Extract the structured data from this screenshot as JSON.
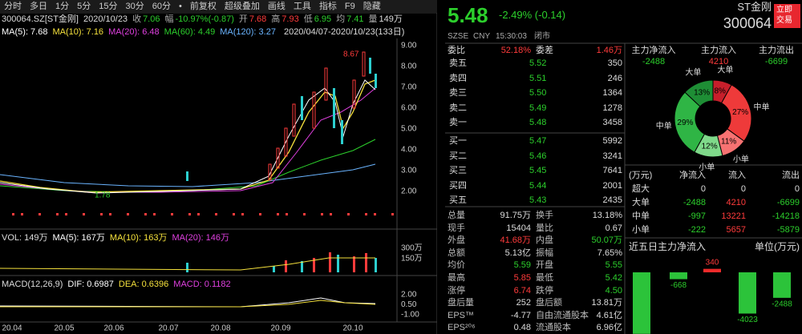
{
  "toolbar": [
    "分时",
    "多日",
    "1分",
    "5分",
    "15分",
    "30分",
    "60分",
    "•",
    "前复权",
    "超级叠加",
    "画线",
    "工具",
    "指标",
    "F9",
    "隐藏"
  ],
  "quote_header": {
    "code": "300064.SZ[ST金刚]",
    "date": "2020/10/23",
    "items": [
      {
        "label": "收",
        "value": "7.06",
        "color": "#2ccf2c"
      },
      {
        "label": "幅",
        "value": "-10.97%(-0.87)",
        "color": "#2ccf2c"
      },
      {
        "label": "开",
        "value": "7.68",
        "color": "#ff3b3b"
      },
      {
        "label": "高",
        "value": "7.93",
        "color": "#ff3b3b"
      },
      {
        "label": "低",
        "value": "6.95",
        "color": "#2ccf2c"
      },
      {
        "label": "均",
        "value": "7.41",
        "color": "#2ccf2c"
      },
      {
        "label": "量",
        "value": "149万",
        "color": "#dddddd"
      }
    ]
  },
  "ma_legend": [
    {
      "text": "MA(5): 7.68",
      "color": "#ffffff"
    },
    {
      "text": "MA(10): 7.16",
      "color": "#f5e13c"
    },
    {
      "text": "MA(20): 6.48",
      "color": "#e040e0"
    },
    {
      "text": "MA(60): 4.49",
      "color": "#2ccf2c"
    },
    {
      "text": "MA(120): 3.27",
      "color": "#6ab4ff"
    }
  ],
  "range": "2020/04/07-2020/10/23(133日)",
  "price_axis": [
    "9.00",
    "8.00",
    "7.00",
    "6.00",
    "5.00",
    "4.00",
    "3.00",
    "2.00"
  ],
  "price_high": "8.67",
  "price_low": "1.78",
  "volume": {
    "legend": [
      {
        "text": "VOL: 149万",
        "color": "#dddddd"
      },
      {
        "text": "MA(5): 167万",
        "color": "#ffffff"
      },
      {
        "text": "MA(10): 163万",
        "color": "#f5e13c"
      },
      {
        "text": "MA(20): 146万",
        "color": "#e040e0"
      }
    ],
    "axis": [
      "300万",
      "150万"
    ]
  },
  "macd": {
    "legend": [
      {
        "text": "MACD(12,26,9)",
        "color": "#dddddd"
      },
      {
        "text": "DIF: 0.6987",
        "color": "#ffffff"
      },
      {
        "text": "DEA: 0.6396",
        "color": "#f5e13c"
      },
      {
        "text": "MACD: 0.1182",
        "color": "#e040e0"
      }
    ],
    "axis": [
      "2.00",
      "0.50",
      "-1.00"
    ]
  },
  "x_axis": [
    "20.04",
    "20.05",
    "20.06",
    "20.07",
    "20.08",
    "20.09",
    "20.10"
  ],
  "quote": {
    "price": "5.48",
    "change": "-2.49% (-0.14)",
    "name": "ST金刚",
    "code": "300064",
    "trade_button": [
      "立即",
      "交易"
    ],
    "exchange": "SZSE",
    "currency": "CNY",
    "time": "15:30:03",
    "status": "闭市"
  },
  "order_book": {
    "ratio_label": "委比",
    "ratio": "52.18%",
    "diff_label": "委差",
    "diff": "1.46万",
    "asks": [
      [
        "卖五",
        "5.52",
        "350"
      ],
      [
        "卖四",
        "5.51",
        "246"
      ],
      [
        "卖三",
        "5.50",
        "1364"
      ],
      [
        "卖二",
        "5.49",
        "1278"
      ],
      [
        "卖一",
        "5.48",
        "3458"
      ]
    ],
    "bids": [
      [
        "买一",
        "5.47",
        "5992"
      ],
      [
        "买二",
        "5.46",
        "3241"
      ],
      [
        "买三",
        "5.45",
        "7641"
      ],
      [
        "买四",
        "5.44",
        "2001"
      ],
      [
        "买五",
        "5.43",
        "2435"
      ]
    ]
  },
  "stats": [
    {
      "label": "总量",
      "value": "91.75万",
      "color": "#dddddd"
    },
    {
      "label": "换手",
      "value": "13.18%",
      "color": "#dddddd"
    },
    {
      "label": "现手",
      "value": "15404",
      "color": "#dddddd"
    },
    {
      "label": "量比",
      "value": "0.67",
      "color": "#dddddd"
    },
    {
      "label": "外盘",
      "value": "41.68万",
      "color": "#ff3b3b"
    },
    {
      "label": "内盘",
      "value": "50.07万",
      "color": "#2ccf2c"
    },
    {
      "label": "总额",
      "value": "5.13亿",
      "color": "#dddddd"
    },
    {
      "label": "振幅",
      "value": "7.65%",
      "color": "#dddddd"
    },
    {
      "label": "均价",
      "value": "5.59",
      "color": "#2ccf2c"
    },
    {
      "label": "开盘",
      "value": "5.55",
      "color": "#2ccf2c"
    },
    {
      "label": "最高",
      "value": "5.85",
      "color": "#ff3b3b"
    },
    {
      "label": "最低",
      "value": "5.42",
      "color": "#2ccf2c"
    },
    {
      "label": "涨停",
      "value": "6.74",
      "color": "#ff3b3b"
    },
    {
      "label": "跌停",
      "value": "4.50",
      "color": "#2ccf2c"
    },
    {
      "label": "盘后量",
      "value": "252",
      "color": "#dddddd"
    },
    {
      "label": "盘后额",
      "value": "13.81万",
      "color": "#dddddd"
    },
    {
      "label": "EPS™",
      "value": "-4.77",
      "color": "#dddddd"
    },
    {
      "label": "自由流通股本",
      "value": "4.61亿",
      "color": "#dddddd"
    },
    {
      "label": "EPS²⁰⁶",
      "value": "0.48",
      "color": "#dddddd"
    },
    {
      "label": "流通股本",
      "value": "6.96亿",
      "color": "#dddddd"
    }
  ],
  "fund_flow": {
    "summary": [
      {
        "label": "主力净流入",
        "value": "-2488"
      },
      {
        "label": "主力流入",
        "value": "4210"
      },
      {
        "label": "主力流出",
        "value": "-6699"
      }
    ],
    "donut": {
      "type": "pie",
      "categories": [
        "大单",
        "中单",
        "小单",
        "小单",
        "中单",
        "大单"
      ],
      "values": [
        8,
        27,
        11,
        12,
        29,
        13
      ],
      "value_labels": [
        "8%",
        "27%",
        "11%",
        "12%",
        "29%",
        "13%"
      ],
      "colors": [
        "#c71f2b",
        "#ee3a3a",
        "#f77272",
        "#7fd98a",
        "#2fb545",
        "#1e8e35"
      ]
    },
    "table": {
      "header": [
        "(万元)",
        "净流入",
        "流入",
        "流出"
      ],
      "rows": [
        [
          "超大",
          "0",
          "0",
          "0"
        ],
        [
          "大单",
          "-2488",
          "4210",
          "-6699"
        ],
        [
          "中单",
          "-997",
          "13221",
          "-14218"
        ],
        [
          "小单",
          "-222",
          "5657",
          "-5879"
        ]
      ]
    },
    "five_day": {
      "type": "bar",
      "title": "近五日主力净流入",
      "unit": "单位(万元)",
      "values": [
        -6000,
        -668,
        340,
        -4023,
        -2488
      ],
      "value_labels": [
        null,
        "-668",
        "340",
        "-4023",
        "-2488"
      ],
      "up_color": "#ee2a2a",
      "down_color": "#2cc33a"
    }
  }
}
